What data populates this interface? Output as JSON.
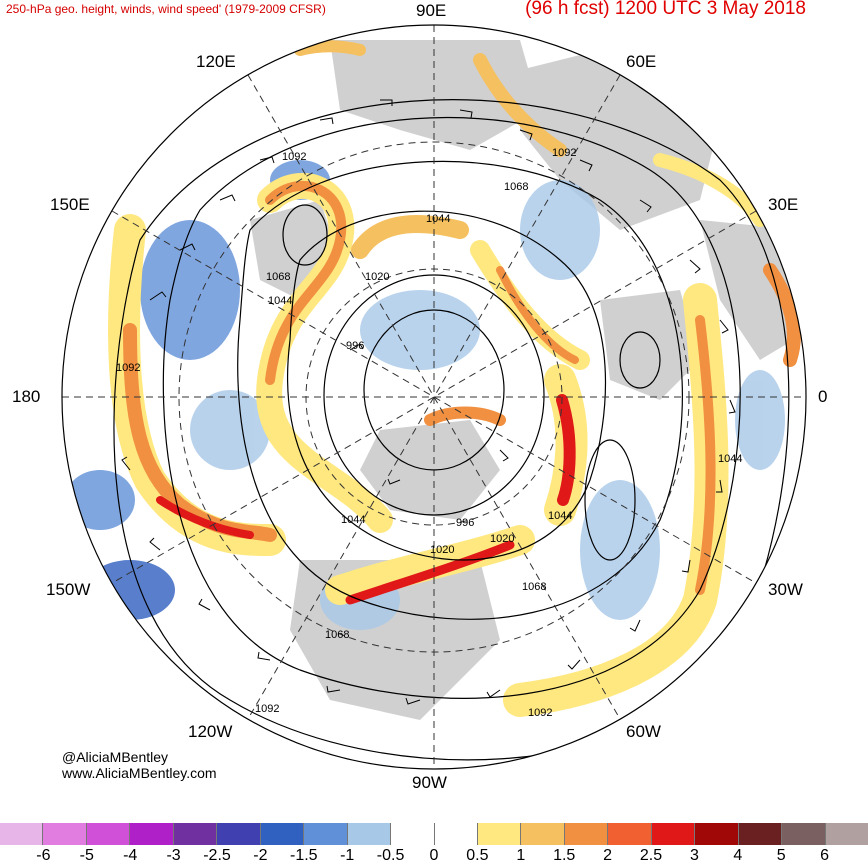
{
  "header": {
    "title": "250-hPa geo. height, winds, wind speed' (1979-2009 CFSR)",
    "forecast": "(96 h fcst) 1200 UTC 3 May 2018"
  },
  "map": {
    "projection": "north-polar-stereographic",
    "longitude_labels": [
      "90E",
      "60E",
      "30E",
      "0",
      "30W",
      "60W",
      "90W",
      "120W",
      "150W",
      "180",
      "150E",
      "120E"
    ],
    "contour_labels": [
      "1092",
      "1068",
      "1044",
      "1020",
      "996",
      "1044",
      "1068",
      "1092",
      "1020",
      "1044",
      "996",
      "1068",
      "1092",
      "1068",
      "1044",
      "1020",
      "1092",
      "1092",
      "1044"
    ]
  },
  "credits": {
    "handle": "@AliciaMBentley",
    "website": "www.AliciaMBentley.com"
  },
  "colorbar": {
    "colors": [
      "#e8b5e8",
      "#e17de1",
      "#d050d8",
      "#b020c8",
      "#7030a0",
      "#4040b0",
      "#3060c0",
      "#6090d8",
      "#a8c8e8",
      "#ffffff",
      "#ffffff",
      "#ffe880",
      "#f5c060",
      "#f09040",
      "#f06030",
      "#e01818",
      "#a00808",
      "#6a2020",
      "#7a6060",
      "#b0a0a0"
    ],
    "ticks": [
      "-6",
      "-5",
      "-4",
      "-3",
      "-2.5",
      "-2",
      "-1.5",
      "-1",
      "-0.5",
      "0",
      "0.5",
      "1",
      "1.5",
      "2",
      "2.5",
      "3",
      "4",
      "5",
      "6"
    ]
  }
}
